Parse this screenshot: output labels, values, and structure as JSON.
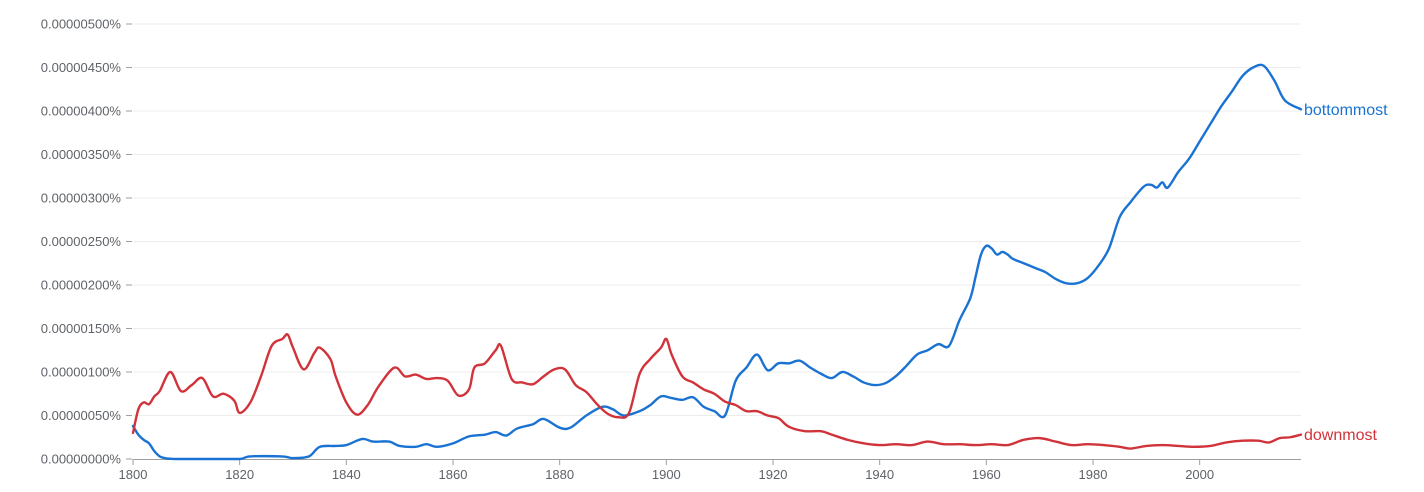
{
  "chart_data": {
    "type": "line",
    "title": "",
    "xlabel": "",
    "ylabel": "",
    "xlim": [
      1800,
      2019
    ],
    "ylim": [
      0,
      5e-06
    ],
    "grid": true,
    "legend": "inline-right",
    "x_ticks": [
      "1800",
      "1820",
      "1840",
      "1860",
      "1880",
      "1900",
      "1920",
      "1940",
      "1960",
      "1980",
      "2000"
    ],
    "y_ticks": [
      "0.00000000%",
      "0.00000050%",
      "0.00000100%",
      "0.00000150%",
      "0.00000200%",
      "0.00000250%",
      "0.00000300%",
      "0.00000350%",
      "0.00000400%",
      "0.00000450%",
      "0.00000500%"
    ],
    "series": [
      {
        "name": "bottommost",
        "color": "#1a73d2",
        "points": [
          [
            1800,
            3.8e-07
          ],
          [
            1801,
            2.8e-07
          ],
          [
            1802,
            2.2e-07
          ],
          [
            1803,
            1.8e-07
          ],
          [
            1804,
            9e-08
          ],
          [
            1805,
            3e-08
          ],
          [
            1806,
            1e-08
          ],
          [
            1808,
            0
          ],
          [
            1812,
            0
          ],
          [
            1815,
            0
          ],
          [
            1820,
            0
          ],
          [
            1822,
            3e-08
          ],
          [
            1828,
            3e-08
          ],
          [
            1830,
            1e-08
          ],
          [
            1833,
            3e-08
          ],
          [
            1835,
            1.4e-07
          ],
          [
            1838,
            1.5e-07
          ],
          [
            1840,
            1.6e-07
          ],
          [
            1843,
            2.3e-07
          ],
          [
            1845,
            2e-07
          ],
          [
            1848,
            2e-07
          ],
          [
            1850,
            1.5e-07
          ],
          [
            1853,
            1.4e-07
          ],
          [
            1855,
            1.7e-07
          ],
          [
            1857,
            1.4e-07
          ],
          [
            1860,
            1.8e-07
          ],
          [
            1863,
            2.6e-07
          ],
          [
            1866,
            2.8e-07
          ],
          [
            1868,
            3.1e-07
          ],
          [
            1870,
            2.7e-07
          ],
          [
            1872,
            3.5e-07
          ],
          [
            1875,
            4e-07
          ],
          [
            1877,
            4.6e-07
          ],
          [
            1880,
            3.6e-07
          ],
          [
            1882,
            3.6e-07
          ],
          [
            1885,
            5e-07
          ],
          [
            1888,
            6e-07
          ],
          [
            1890,
            5.7e-07
          ],
          [
            1892,
            5e-07
          ],
          [
            1895,
            5.5e-07
          ],
          [
            1897,
            6.2e-07
          ],
          [
            1899,
            7.2e-07
          ],
          [
            1901,
            7e-07
          ],
          [
            1903,
            6.8e-07
          ],
          [
            1905,
            7.1e-07
          ],
          [
            1907,
            6e-07
          ],
          [
            1909,
            5.5e-07
          ],
          [
            1911,
            5e-07
          ],
          [
            1913,
            9e-07
          ],
          [
            1915,
            1.05e-06
          ],
          [
            1917,
            1.2e-06
          ],
          [
            1919,
            1.02e-06
          ],
          [
            1921,
            1.1e-06
          ],
          [
            1923,
            1.1e-06
          ],
          [
            1925,
            1.13e-06
          ],
          [
            1927,
            1.05e-06
          ],
          [
            1929,
            9.8e-07
          ],
          [
            1931,
            9.3e-07
          ],
          [
            1933,
            1e-06
          ],
          [
            1935,
            9.5e-07
          ],
          [
            1937,
            8.8e-07
          ],
          [
            1939,
            8.5e-07
          ],
          [
            1941,
            8.7e-07
          ],
          [
            1943,
            9.5e-07
          ],
          [
            1945,
            1.07e-06
          ],
          [
            1947,
            1.2e-06
          ],
          [
            1949,
            1.25e-06
          ],
          [
            1951,
            1.32e-06
          ],
          [
            1953,
            1.3e-06
          ],
          [
            1955,
            1.6e-06
          ],
          [
            1957,
            1.85e-06
          ],
          [
            1958,
            2.1e-06
          ],
          [
            1959,
            2.35e-06
          ],
          [
            1960,
            2.45e-06
          ],
          [
            1961,
            2.42e-06
          ],
          [
            1962,
            2.35e-06
          ],
          [
            1963,
            2.38e-06
          ],
          [
            1964,
            2.35e-06
          ],
          [
            1965,
            2.3e-06
          ],
          [
            1967,
            2.25e-06
          ],
          [
            1969,
            2.2e-06
          ],
          [
            1971,
            2.15e-06
          ],
          [
            1973,
            2.07e-06
          ],
          [
            1975,
            2.02e-06
          ],
          [
            1977,
            2.02e-06
          ],
          [
            1979,
            2.08e-06
          ],
          [
            1981,
            2.22e-06
          ],
          [
            1983,
            2.42e-06
          ],
          [
            1985,
            2.78e-06
          ],
          [
            1987,
            2.95e-06
          ],
          [
            1989,
            3.1e-06
          ],
          [
            1990,
            3.15e-06
          ],
          [
            1991,
            3.15e-06
          ],
          [
            1992,
            3.12e-06
          ],
          [
            1993,
            3.18e-06
          ],
          [
            1994,
            3.12e-06
          ],
          [
            1996,
            3.3e-06
          ],
          [
            1998,
            3.45e-06
          ],
          [
            2000,
            3.65e-06
          ],
          [
            2002,
            3.85e-06
          ],
          [
            2004,
            4.05e-06
          ],
          [
            2006,
            4.22e-06
          ],
          [
            2008,
            4.4e-06
          ],
          [
            2010,
            4.5e-06
          ],
          [
            2012,
            4.52e-06
          ],
          [
            2014,
            4.35e-06
          ],
          [
            2016,
            4.12e-06
          ],
          [
            2019,
            4.02e-06
          ]
        ]
      },
      {
        "name": "downmost",
        "color": "#d1333a",
        "points": [
          [
            1800,
            3e-07
          ],
          [
            1801,
            5.7e-07
          ],
          [
            1802,
            6.5e-07
          ],
          [
            1803,
            6.3e-07
          ],
          [
            1804,
            7.2e-07
          ],
          [
            1805,
            7.8e-07
          ],
          [
            1807,
            1e-06
          ],
          [
            1809,
            7.8e-07
          ],
          [
            1811,
            8.5e-07
          ],
          [
            1813,
            9.3e-07
          ],
          [
            1815,
            7.2e-07
          ],
          [
            1817,
            7.5e-07
          ],
          [
            1819,
            6.7e-07
          ],
          [
            1820,
            5.3e-07
          ],
          [
            1822,
            6.5e-07
          ],
          [
            1824,
            9.5e-07
          ],
          [
            1826,
            1.3e-06
          ],
          [
            1828,
            1.38e-06
          ],
          [
            1829,
            1.43e-06
          ],
          [
            1830,
            1.28e-06
          ],
          [
            1832,
            1.03e-06
          ],
          [
            1834,
            1.22e-06
          ],
          [
            1835,
            1.28e-06
          ],
          [
            1837,
            1.15e-06
          ],
          [
            1838,
            9.5e-07
          ],
          [
            1840,
            6.5e-07
          ],
          [
            1842,
            5.1e-07
          ],
          [
            1844,
            6.2e-07
          ],
          [
            1846,
            8.3e-07
          ],
          [
            1849,
            1.05e-06
          ],
          [
            1851,
            9.5e-07
          ],
          [
            1853,
            9.7e-07
          ],
          [
            1855,
            9.2e-07
          ],
          [
            1857,
            9.3e-07
          ],
          [
            1859,
            9e-07
          ],
          [
            1861,
            7.3e-07
          ],
          [
            1863,
            8e-07
          ],
          [
            1864,
            1.05e-06
          ],
          [
            1866,
            1.1e-06
          ],
          [
            1868,
            1.25e-06
          ],
          [
            1869,
            1.3e-06
          ],
          [
            1871,
            9.2e-07
          ],
          [
            1873,
            8.8e-07
          ],
          [
            1875,
            8.6e-07
          ],
          [
            1877,
            9.5e-07
          ],
          [
            1879,
            1.03e-06
          ],
          [
            1881,
            1.03e-06
          ],
          [
            1883,
            8.5e-07
          ],
          [
            1885,
            7.7e-07
          ],
          [
            1887,
            6.3e-07
          ],
          [
            1889,
            5.2e-07
          ],
          [
            1891,
            4.8e-07
          ],
          [
            1893,
            5.3e-07
          ],
          [
            1895,
            9.8e-07
          ],
          [
            1897,
            1.15e-06
          ],
          [
            1899,
            1.28e-06
          ],
          [
            1900,
            1.38e-06
          ],
          [
            1901,
            1.2e-06
          ],
          [
            1903,
            9.5e-07
          ],
          [
            1905,
            8.8e-07
          ],
          [
            1907,
            8e-07
          ],
          [
            1909,
            7.5e-07
          ],
          [
            1911,
            6.6e-07
          ],
          [
            1913,
            6.2e-07
          ],
          [
            1915,
            5.5e-07
          ],
          [
            1917,
            5.5e-07
          ],
          [
            1919,
            5e-07
          ],
          [
            1921,
            4.7e-07
          ],
          [
            1923,
            3.7e-07
          ],
          [
            1926,
            3.2e-07
          ],
          [
            1929,
            3.2e-07
          ],
          [
            1931,
            2.8e-07
          ],
          [
            1934,
            2.2e-07
          ],
          [
            1937,
            1.8e-07
          ],
          [
            1940,
            1.6e-07
          ],
          [
            1943,
            1.7e-07
          ],
          [
            1946,
            1.6e-07
          ],
          [
            1949,
            2e-07
          ],
          [
            1952,
            1.7e-07
          ],
          [
            1955,
            1.7e-07
          ],
          [
            1958,
            1.6e-07
          ],
          [
            1961,
            1.7e-07
          ],
          [
            1964,
            1.6e-07
          ],
          [
            1967,
            2.2e-07
          ],
          [
            1970,
            2.4e-07
          ],
          [
            1973,
            2e-07
          ],
          [
            1976,
            1.6e-07
          ],
          [
            1979,
            1.7e-07
          ],
          [
            1982,
            1.6e-07
          ],
          [
            1985,
            1.4e-07
          ],
          [
            1987,
            1.2e-07
          ],
          [
            1990,
            1.5e-07
          ],
          [
            1993,
            1.6e-07
          ],
          [
            1996,
            1.5e-07
          ],
          [
            1999,
            1.4e-07
          ],
          [
            2002,
            1.5e-07
          ],
          [
            2005,
            1.9e-07
          ],
          [
            2008,
            2.1e-07
          ],
          [
            2011,
            2.1e-07
          ],
          [
            2013,
            1.9e-07
          ],
          [
            2015,
            2.4e-07
          ],
          [
            2017,
            2.5e-07
          ],
          [
            2019,
            2.8e-07
          ]
        ]
      }
    ]
  }
}
